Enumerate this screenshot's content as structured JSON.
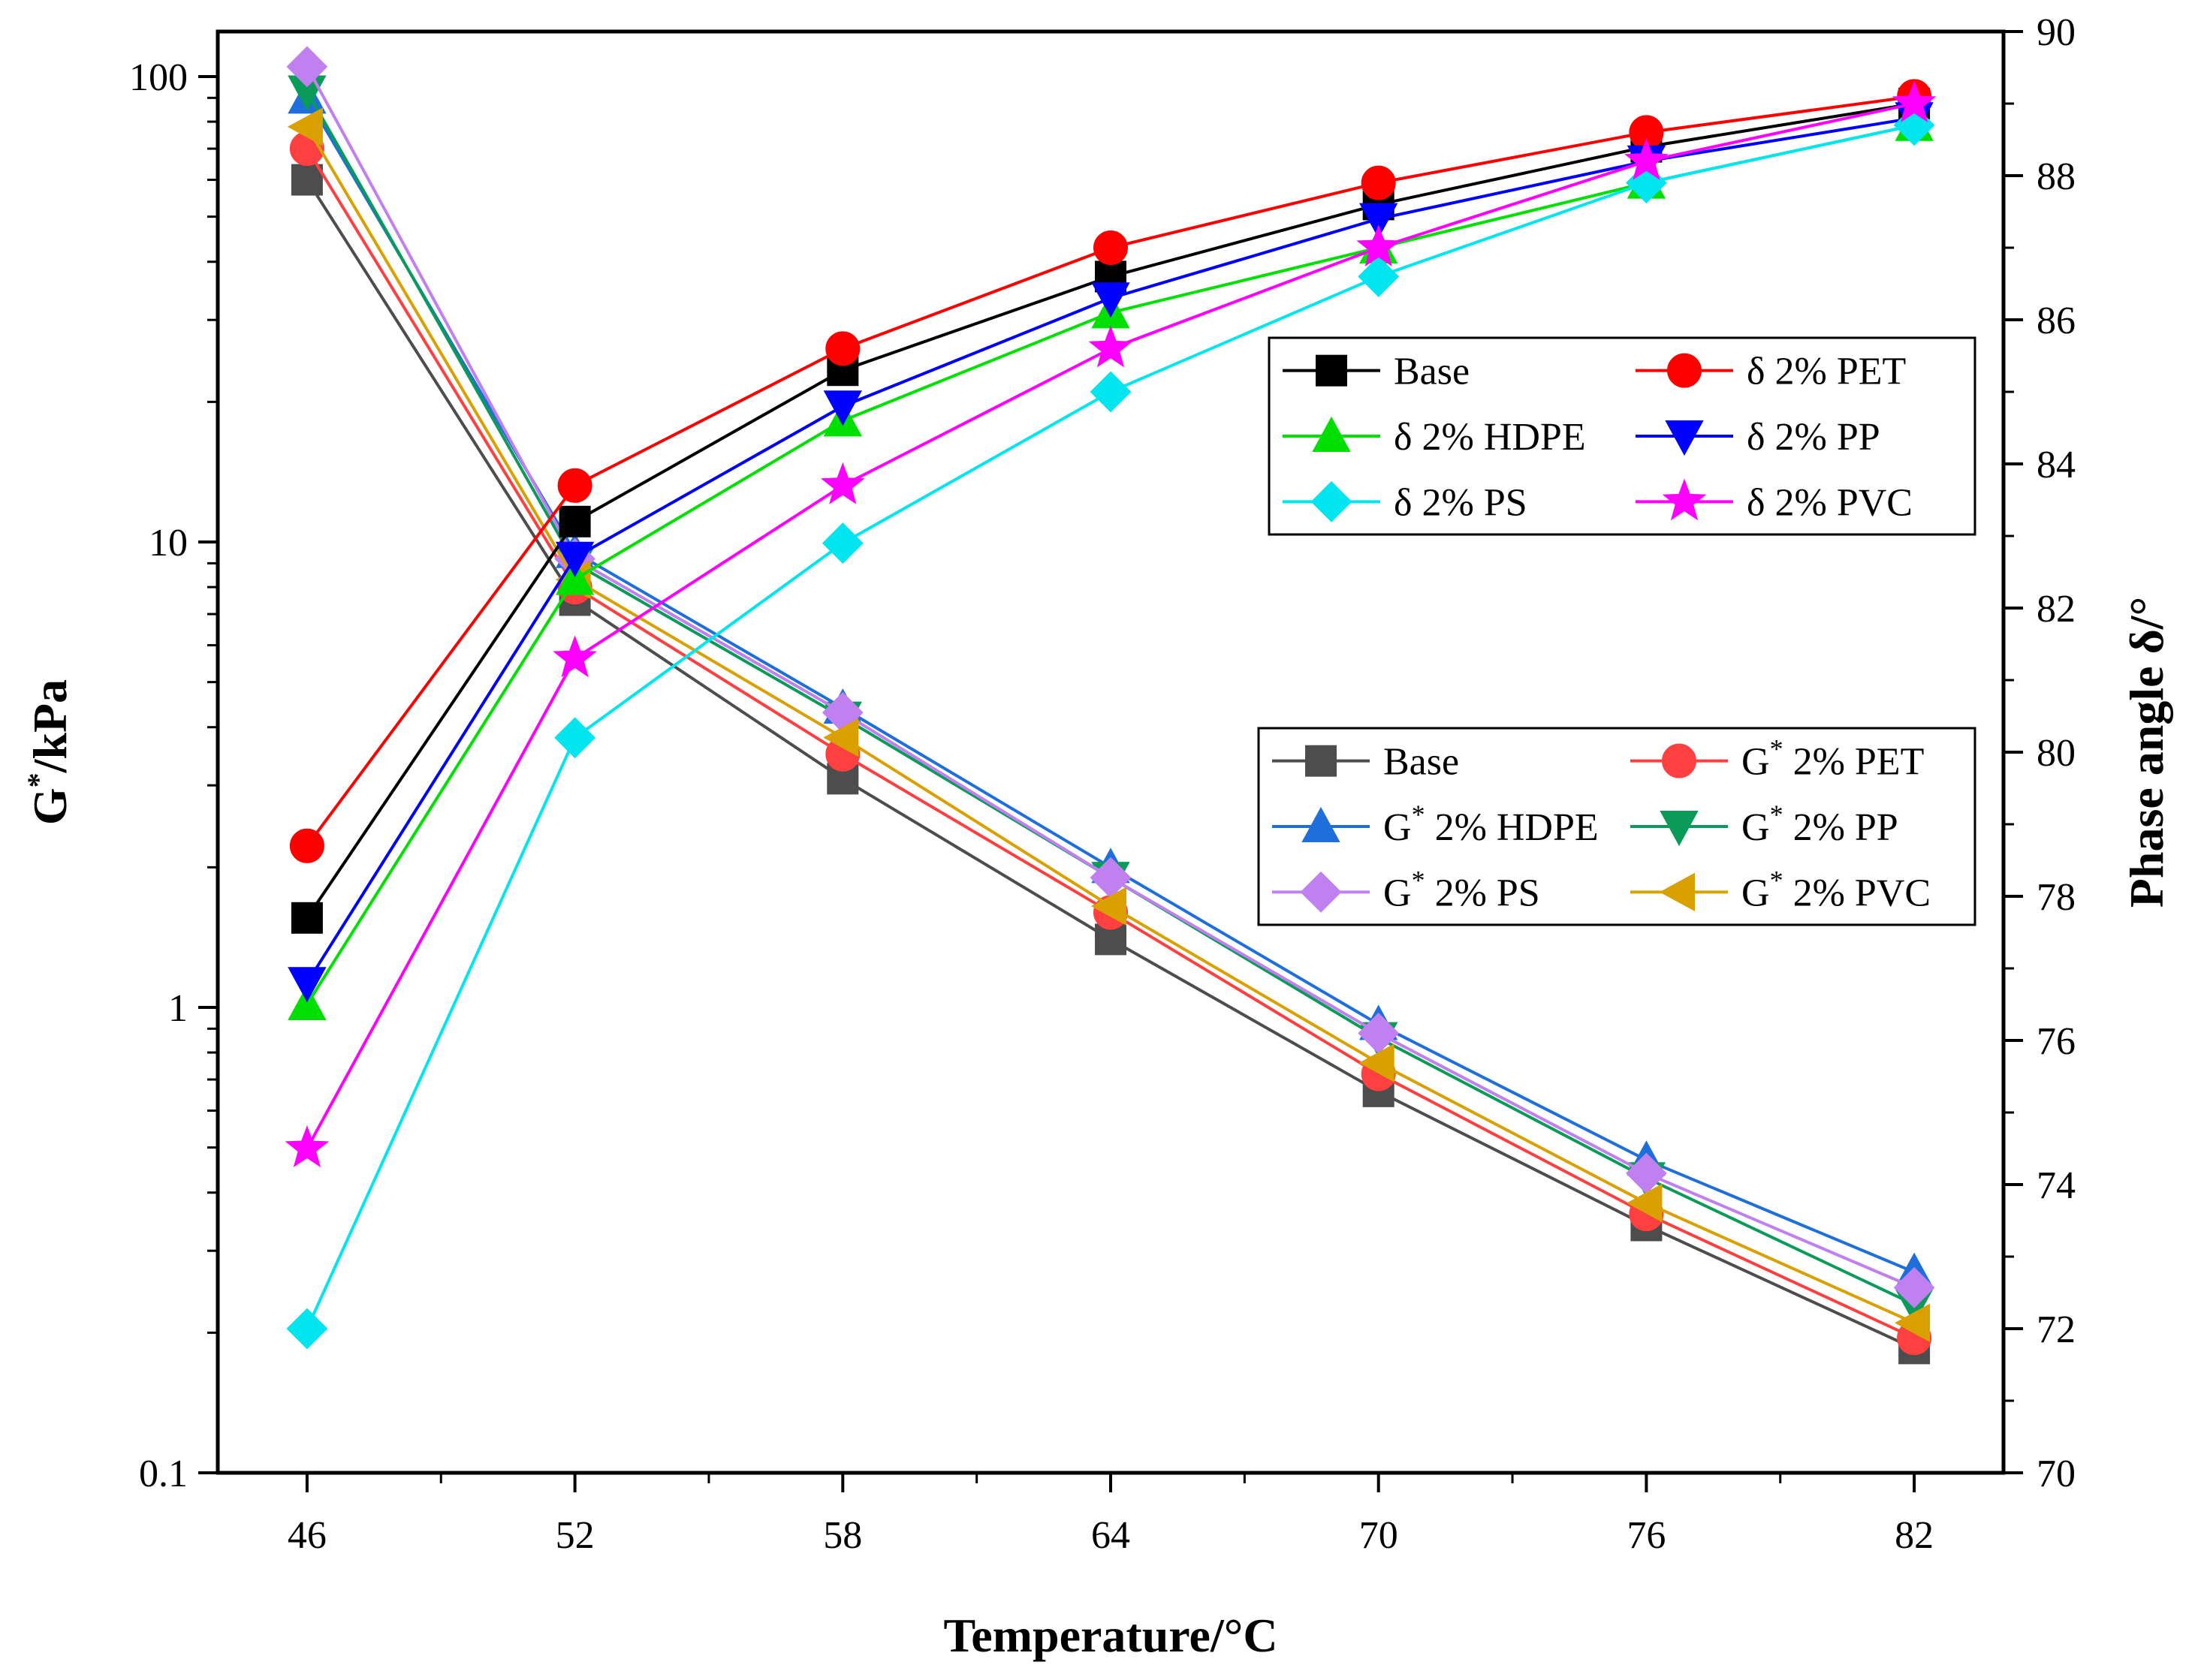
{
  "chart_data": {
    "type": "line",
    "x": [
      46,
      52,
      58,
      64,
      70,
      76,
      82
    ],
    "xlabel": "Temperature/°C",
    "ylabel_left_main": "G",
    "ylabel_left_sup": "*",
    "ylabel_left_rest": "/kPa",
    "ylabel_right": "Phase angle δ/°",
    "x_ticks": [
      "46",
      "52",
      "58",
      "64",
      "70",
      "76",
      "82"
    ],
    "y_left_scale": "log",
    "y_left_range": [
      0.1,
      100
    ],
    "y_left_ticks": [
      "0.1",
      "1",
      "10",
      "100"
    ],
    "y_right_range": [
      70,
      90
    ],
    "y_right_ticks": [
      "70",
      "72",
      "74",
      "76",
      "78",
      "80",
      "82",
      "84",
      "86",
      "88",
      "90"
    ],
    "phase_series": [
      {
        "name": "Base",
        "prefix": "",
        "suffix": "Base",
        "color": "#000000",
        "marker": "square",
        "values": [
          77.7,
          83.2,
          85.3,
          86.6,
          87.6,
          88.4,
          89.0
        ]
      },
      {
        "name": "δ 2% PET",
        "prefix": "",
        "suffix": "δ 2% PET",
        "color": "#ff0000",
        "marker": "circle",
        "values": [
          78.7,
          83.7,
          85.6,
          87.0,
          87.9,
          88.6,
          89.1
        ]
      },
      {
        "name": "δ 2% HDPE",
        "prefix": "",
        "suffix": "δ 2% HDPE",
        "color": "#00e000",
        "marker": "triangle-up",
        "values": [
          76.5,
          82.4,
          84.6,
          86.1,
          87.0,
          87.9,
          88.7
        ]
      },
      {
        "name": "δ 2% PP",
        "prefix": "",
        "suffix": "δ 2% PP",
        "color": "#0000ff",
        "marker": "triangle-down",
        "values": [
          76.8,
          82.7,
          84.8,
          86.3,
          87.4,
          88.2,
          88.8
        ]
      },
      {
        "name": "δ 2% PS",
        "prefix": "",
        "suffix": "δ 2% PS",
        "color": "#00e5ee",
        "marker": "diamond",
        "values": [
          72.0,
          80.2,
          82.9,
          85.0,
          86.6,
          87.9,
          88.7
        ]
      },
      {
        "name": "δ 2% PVC",
        "prefix": "",
        "suffix": "δ 2% PVC",
        "color": "#ff00ff",
        "marker": "star",
        "values": [
          74.5,
          81.3,
          83.7,
          85.6,
          87.0,
          88.2,
          89.0
        ]
      }
    ],
    "g_series": [
      {
        "name": "Base",
        "prefix": "",
        "suffix": "Base",
        "color": "#4d4d4d",
        "marker": "square",
        "values": [
          60,
          7.5,
          3.1,
          1.4,
          0.66,
          0.34,
          0.185
        ]
      },
      {
        "name": "G* 2% PET",
        "prefix": "G",
        "suffix": " 2% PET",
        "color": "#ff4040",
        "marker": "circle",
        "values": [
          70,
          8.0,
          3.5,
          1.6,
          0.72,
          0.36,
          0.195
        ]
      },
      {
        "name": "G* 2% HDPE",
        "prefix": "G",
        "suffix": " 2% HDPE",
        "color": "#1e6fdc",
        "marker": "triangle-up",
        "values": [
          90,
          9.5,
          4.4,
          2.0,
          0.92,
          0.47,
          0.27
        ]
      },
      {
        "name": "G* 2% PP",
        "prefix": "G",
        "suffix": " 2% PP",
        "color": "#0a9b5a",
        "marker": "triangle-down",
        "values": [
          93,
          9.0,
          4.2,
          1.9,
          0.86,
          0.43,
          0.23
        ]
      },
      {
        "name": "G* 2% PS",
        "prefix": "G",
        "suffix": " 2% PS",
        "color": "#c080f0",
        "marker": "diamond",
        "values": [
          105,
          9.2,
          4.3,
          1.9,
          0.88,
          0.44,
          0.25
        ]
      },
      {
        "name": "G* 2% PVC",
        "prefix": "G",
        "suffix": " 2% PVC",
        "color": "#daa000",
        "marker": "triangle-left",
        "values": [
          78,
          8.3,
          3.8,
          1.65,
          0.76,
          0.38,
          0.21
        ]
      }
    ],
    "legends": [
      {
        "position": "upper-right",
        "group": "phase"
      },
      {
        "position": "middle-right",
        "group": "g"
      }
    ]
  }
}
